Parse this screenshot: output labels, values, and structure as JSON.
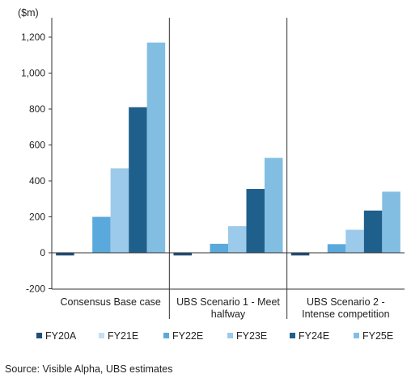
{
  "chart_data": {
    "type": "bar",
    "unit_label": "($m)",
    "ylim": [
      -200,
      1300
    ],
    "y_ticks": [
      -200,
      0,
      200,
      400,
      600,
      800,
      1000,
      1200
    ],
    "y_tick_labels": [
      "-200",
      "0",
      "200",
      "400",
      "600",
      "800",
      "1,000",
      "1,200"
    ],
    "categories": [
      [
        "Consensus Base case"
      ],
      [
        "UBS Scenario 1 - Meet",
        "halfway"
      ],
      [
        "UBS Scenario 2 -",
        "Intense competition"
      ]
    ],
    "series": [
      {
        "name": "FY20A",
        "color": "#1f4e79",
        "values": [
          -15,
          -15,
          -15
        ]
      },
      {
        "name": "FY21E",
        "color": "#c6def0",
        "values": [
          0,
          0,
          0
        ]
      },
      {
        "name": "FY22E",
        "color": "#5aa9dc",
        "values": [
          200,
          50,
          48
        ]
      },
      {
        "name": "FY23E",
        "color": "#9ccaea",
        "values": [
          470,
          148,
          128
        ]
      },
      {
        "name": "FY24E",
        "color": "#1f5f8b",
        "values": [
          810,
          355,
          235
        ]
      },
      {
        "name": "FY25E",
        "color": "#82bde2",
        "values": [
          1170,
          528,
          340
        ]
      }
    ],
    "legend_position": "bottom",
    "grid": false
  },
  "source": "Source:  Visible Alpha, UBS estimates"
}
